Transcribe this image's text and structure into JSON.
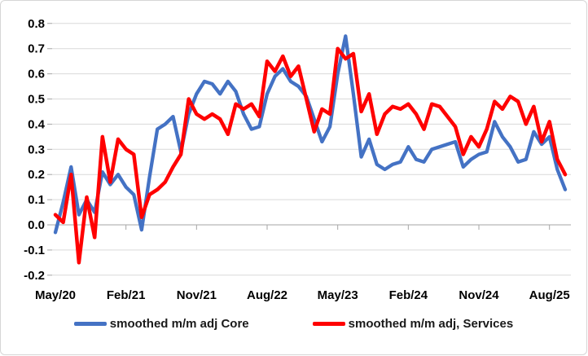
{
  "chart_data": {
    "type": "line",
    "title": "",
    "xlabel": "",
    "ylabel": "",
    "ylim": [
      -0.2,
      0.8
    ],
    "y_tick_step": 0.1,
    "y_tick_labels": [
      "0.8",
      "0.7",
      "0.6",
      "0.5",
      "0.4",
      "0.3",
      "0.2",
      "0.1",
      "0.0",
      "-0.1",
      "-0.2"
    ],
    "x_tick_labels": [
      "May/20",
      "Feb/21",
      "Nov/21",
      "Aug/22",
      "May/23",
      "Feb/24",
      "Nov/24",
      "Aug/25"
    ],
    "x_tick_interval_months": 9,
    "grid": true,
    "legend_position": "bottom",
    "months": [
      "May/20",
      "Jun/20",
      "Jul/20",
      "Aug/20",
      "Sep/20",
      "Oct/20",
      "Nov/20",
      "Dec/20",
      "Jan/21",
      "Feb/21",
      "Mar/21",
      "Apr/21",
      "May/21",
      "Jun/21",
      "Jul/21",
      "Aug/21",
      "Sep/21",
      "Oct/21",
      "Nov/21",
      "Dec/21",
      "Jan/22",
      "Feb/22",
      "Mar/22",
      "Apr/22",
      "May/22",
      "Jun/22",
      "Jul/22",
      "Aug/22",
      "Sep/22",
      "Oct/22",
      "Nov/22",
      "Dec/22",
      "Jan/23",
      "Feb/23",
      "Mar/23",
      "Apr/23",
      "May/23",
      "Jun/23",
      "Jul/23",
      "Aug/23",
      "Sep/23",
      "Oct/23",
      "Nov/23",
      "Dec/23",
      "Jan/24",
      "Feb/24",
      "Mar/24",
      "Apr/24",
      "May/24",
      "Jun/24",
      "Jul/24",
      "Aug/24",
      "Sep/24",
      "Oct/24",
      "Nov/24",
      "Dec/24",
      "Jan/25",
      "Feb/25",
      "Mar/25",
      "Apr/25",
      "May/25",
      "Jun/25",
      "Jul/25",
      "Aug/25",
      "Sep/25",
      "Oct/25"
    ],
    "series": [
      {
        "name": "smoothed m/m adj Core",
        "color": "#4472C4",
        "stroke_width": 4.3,
        "values": [
          -0.03,
          0.09,
          0.23,
          0.04,
          0.1,
          0.05,
          0.21,
          0.16,
          0.2,
          0.15,
          0.12,
          -0.02,
          0.19,
          0.38,
          0.4,
          0.43,
          0.29,
          0.44,
          0.52,
          0.57,
          0.56,
          0.52,
          0.57,
          0.53,
          0.44,
          0.38,
          0.39,
          0.52,
          0.59,
          0.62,
          0.57,
          0.55,
          0.51,
          0.42,
          0.33,
          0.39,
          0.6,
          0.75,
          0.52,
          0.27,
          0.34,
          0.24,
          0.22,
          0.24,
          0.25,
          0.31,
          0.26,
          0.25,
          0.3,
          0.31,
          0.32,
          0.33,
          0.23,
          0.26,
          0.28,
          0.29,
          0.41,
          0.35,
          0.31,
          0.25,
          0.26,
          0.37,
          0.32,
          0.35,
          0.22,
          0.14
        ]
      },
      {
        "name": "smoothed m/m adj, Services",
        "color": "#FF0000",
        "stroke_width": 4.5,
        "values": [
          0.04,
          0.01,
          0.2,
          -0.15,
          0.11,
          -0.05,
          0.35,
          0.17,
          0.34,
          0.3,
          0.28,
          0.03,
          0.12,
          0.14,
          0.17,
          0.23,
          0.28,
          0.5,
          0.44,
          0.42,
          0.44,
          0.42,
          0.36,
          0.48,
          0.46,
          0.48,
          0.43,
          0.65,
          0.61,
          0.67,
          0.59,
          0.63,
          0.5,
          0.37,
          0.46,
          0.44,
          0.7,
          0.66,
          0.68,
          0.45,
          0.52,
          0.36,
          0.44,
          0.47,
          0.46,
          0.48,
          0.44,
          0.38,
          0.48,
          0.47,
          0.43,
          0.39,
          0.28,
          0.35,
          0.31,
          0.38,
          0.49,
          0.46,
          0.51,
          0.49,
          0.4,
          0.47,
          0.33,
          0.41,
          0.26,
          0.2
        ]
      }
    ]
  },
  "colors": {
    "gridline": "#d9d9d9",
    "axis": "#a6a6a6",
    "tick": "#a6a6a6",
    "label_text": "#000000",
    "legend_text": "#1a1a1a",
    "background": "#ffffff"
  },
  "legend": {
    "items": [
      {
        "label": "smoothed m/m adj Core",
        "color": "#4472C4"
      },
      {
        "label": "smoothed m/m adj, Services",
        "color": "#FF0000"
      }
    ]
  }
}
